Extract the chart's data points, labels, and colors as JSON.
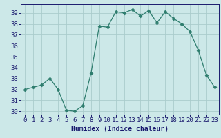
{
  "x": [
    0,
    1,
    2,
    3,
    4,
    5,
    6,
    7,
    8,
    9,
    10,
    11,
    12,
    13,
    14,
    15,
    16,
    17,
    18,
    19,
    20,
    21,
    22,
    23
  ],
  "y": [
    32.0,
    32.2,
    32.4,
    33.0,
    32.0,
    30.1,
    30.0,
    30.5,
    33.5,
    37.8,
    37.7,
    39.1,
    39.0,
    39.3,
    38.7,
    39.2,
    38.1,
    39.1,
    38.5,
    38.0,
    37.3,
    35.6,
    33.3,
    32.2
  ],
  "xlabel": "Humidex (Indice chaleur)",
  "xlim": [
    -0.5,
    23.5
  ],
  "ylim": [
    29.7,
    39.8
  ],
  "yticks": [
    30,
    31,
    32,
    33,
    34,
    35,
    36,
    37,
    38,
    39
  ],
  "xticks": [
    0,
    1,
    2,
    3,
    4,
    5,
    6,
    7,
    8,
    9,
    10,
    11,
    12,
    13,
    14,
    15,
    16,
    17,
    18,
    19,
    20,
    21,
    22,
    23
  ],
  "line_color": "#2e7d6e",
  "marker": "D",
  "marker_size": 2.5,
  "bg_color": "#cce8e8",
  "grid_color": "#aacccc",
  "label_fontsize": 7,
  "tick_fontsize": 6.5
}
